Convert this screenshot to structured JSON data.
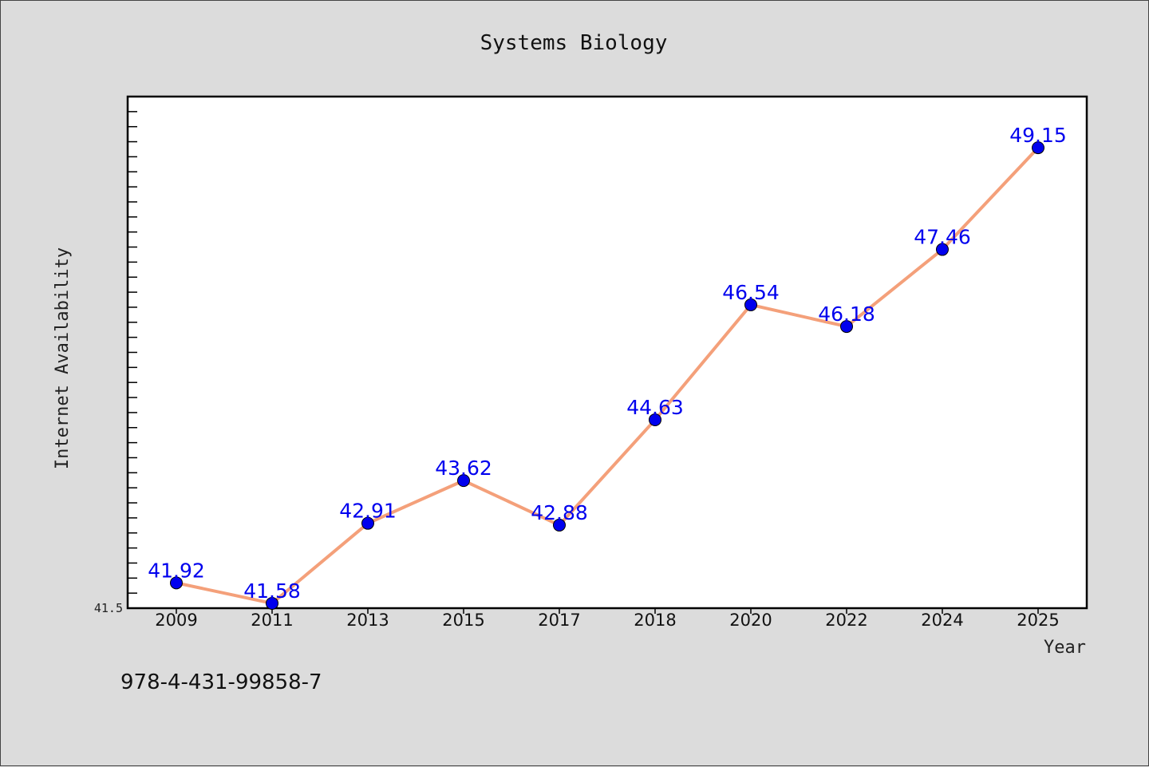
{
  "chart_data": {
    "type": "line",
    "title": "Systems Biology",
    "xlabel": "Year",
    "ylabel": "Internet Availability",
    "categories": [
      "2009",
      "2011",
      "2013",
      "2015",
      "2017",
      "2018",
      "2020",
      "2022",
      "2024",
      "2025"
    ],
    "series": [
      {
        "values": [
          41.92,
          41.58,
          42.91,
          43.62,
          42.88,
          44.63,
          46.54,
          46.18,
          47.46,
          49.15
        ],
        "labels": [
          "41.92",
          "41.58",
          "42.91",
          "43.62",
          "42.88",
          "44.63",
          "46.54",
          "46.18",
          "47.46",
          "49.15"
        ]
      }
    ],
    "ylim": [
      41.5,
      50.0
    ],
    "y_tick_labels": [
      "41.5"
    ],
    "grid": false,
    "line_color": "#f4a07a",
    "marker_color": "#0000ee",
    "label_color": "#0000ee"
  },
  "footnote": "978-4-431-99858-7"
}
